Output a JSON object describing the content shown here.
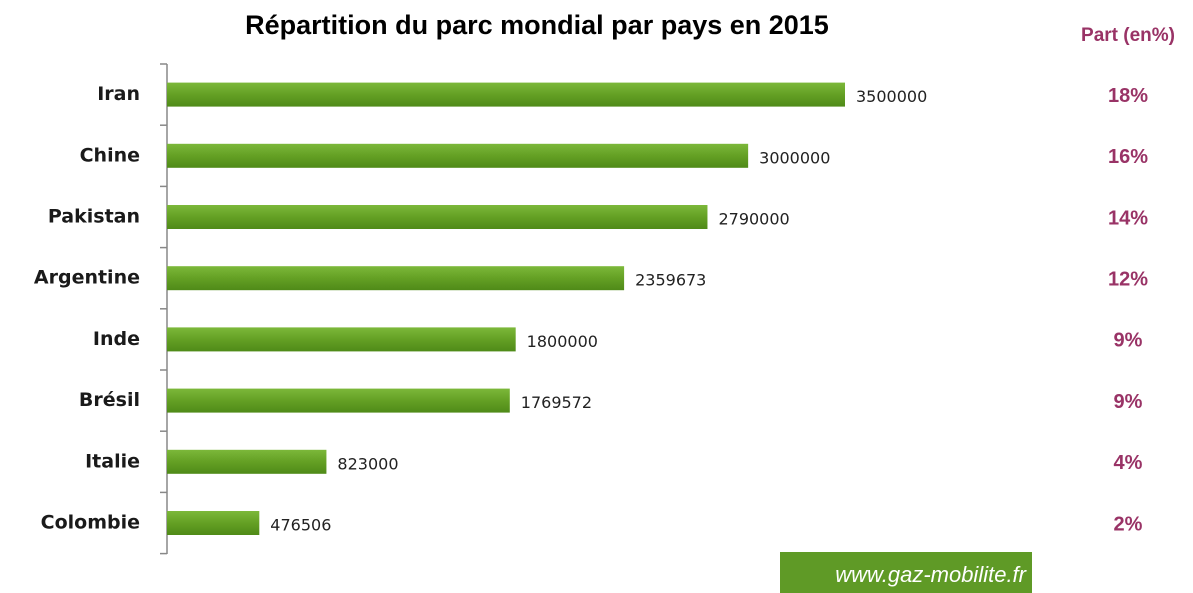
{
  "chart_data": {
    "type": "bar",
    "orientation": "horizontal",
    "title": "Répartition du parc mondial par pays en 2015",
    "categories": [
      "Iran",
      "Chine",
      "Pakistan",
      "Argentine",
      "Inde",
      "Brésil",
      "Italie",
      "Colombie"
    ],
    "values": [
      3500000,
      3000000,
      2790000,
      2359673,
      1800000,
      1769572,
      823000,
      476506
    ],
    "color": "#6a9e2a",
    "xlim": [
      0,
      3500000
    ],
    "share": {
      "title": "Part (en%)",
      "values": [
        18,
        16,
        14,
        12,
        9,
        9,
        4,
        2
      ],
      "value_labels": [
        "18%",
        "16%",
        "14%",
        "12%",
        "9%",
        "9%",
        "4%",
        "2%"
      ],
      "color": "#993366"
    },
    "annotation": "www.gaz-mobilite.fr"
  }
}
